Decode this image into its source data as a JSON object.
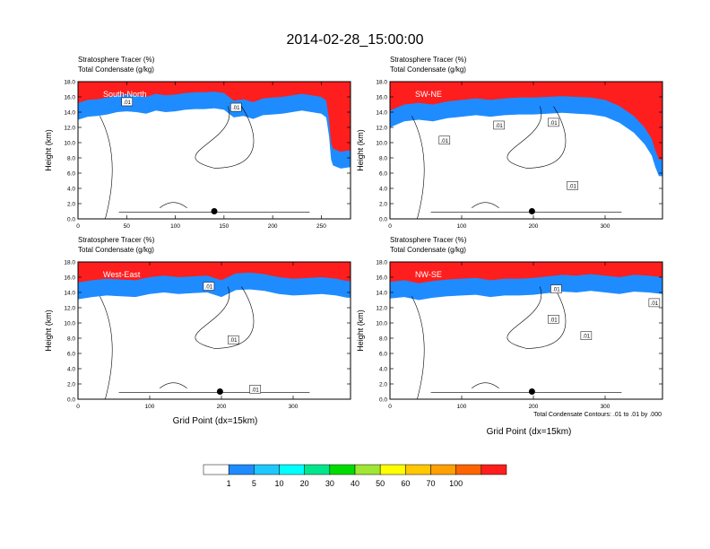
{
  "figure_title": "2014-02-28_15:00:00",
  "y_label": "Height (km)",
  "x_label": "Grid Point (dx=15km)",
  "contour_note": "Total Condensate Contours: .01 to .01 by .000",
  "colorbar": {
    "labels": [
      "1",
      "5",
      "10",
      "20",
      "30",
      "40",
      "50",
      "60",
      "70",
      "100"
    ],
    "colors": [
      "#ffffff",
      "#1e8cff",
      "#1ec8ff",
      "#00ffff",
      "#00e68c",
      "#00dc00",
      "#a0e632",
      "#ffff00",
      "#ffc800",
      "#ffa000",
      "#ff6400",
      "#ff1e1e"
    ]
  },
  "chart_data": [
    {
      "type": "contour",
      "title_line1": "Stratosphere Tracer   (%)",
      "title_line2": "Total Condensate   (g/kg)",
      "cross_section": "South-North",
      "x_ticks": [
        0,
        50,
        100,
        150,
        200,
        250
      ],
      "xlim": [
        0,
        280
      ],
      "y_ticks": [
        "0.0",
        "2.0",
        "4.0",
        "6.0",
        "8.0",
        "10.0",
        "12.0",
        "14.0",
        "16.0",
        "18.0"
      ],
      "ylim": [
        0,
        18
      ],
      "contour_labels": [
        ".01",
        ".01"
      ],
      "marker": {
        "x": 140,
        "y": 1.0
      },
      "tropopause": [
        [
          0,
          15.2
        ],
        [
          10,
          15.6
        ],
        [
          20,
          15.7
        ],
        [
          30,
          15.9
        ],
        [
          40,
          16.2
        ],
        [
          50,
          16.3
        ],
        [
          60,
          16.2
        ],
        [
          70,
          16.0
        ],
        [
          80,
          16.4
        ],
        [
          90,
          16.2
        ],
        [
          100,
          16.3
        ],
        [
          110,
          16.5
        ],
        [
          120,
          16.6
        ],
        [
          130,
          16.6
        ],
        [
          140,
          16.7
        ],
        [
          150,
          16.5
        ],
        [
          160,
          15.5
        ],
        [
          170,
          15.7
        ],
        [
          180,
          15.3
        ],
        [
          190,
          15.8
        ],
        [
          200,
          15.9
        ],
        [
          210,
          16.0
        ],
        [
          220,
          16.2
        ],
        [
          230,
          16.4
        ],
        [
          240,
          16.2
        ],
        [
          250,
          16.0
        ],
        [
          255,
          15.5
        ],
        [
          258,
          13
        ],
        [
          260,
          10
        ],
        [
          262,
          9.2
        ],
        [
          270,
          8.8
        ],
        [
          280,
          9.0
        ]
      ]
    },
    {
      "type": "contour",
      "title_line1": "Stratosphere Tracer   (%)",
      "title_line2": "Total Condensate   (g/kg)",
      "cross_section": "SW-NE",
      "x_ticks": [
        0,
        100,
        200,
        300
      ],
      "xlim": [
        0,
        380
      ],
      "y_ticks": [
        "0.0",
        "2.0",
        "4.0",
        "6.0",
        "8.0",
        "10.0",
        "12.0",
        "14.0",
        "16.0",
        "18.0"
      ],
      "ylim": [
        0,
        18
      ],
      "contour_labels": [
        ".01",
        ".01",
        ".01",
        ".01"
      ],
      "marker": {
        "x": 198,
        "y": 1.0
      },
      "tropopause": [
        [
          0,
          14.2
        ],
        [
          20,
          15.0
        ],
        [
          40,
          15.2
        ],
        [
          60,
          15.0
        ],
        [
          80,
          15.4
        ],
        [
          100,
          15.6
        ],
        [
          120,
          15.8
        ],
        [
          140,
          15.6
        ],
        [
          160,
          15.8
        ],
        [
          180,
          15.9
        ],
        [
          200,
          15.9
        ],
        [
          220,
          16.0
        ],
        [
          240,
          16.1
        ],
        [
          260,
          16.0
        ],
        [
          280,
          15.9
        ],
        [
          300,
          15.6
        ],
        [
          320,
          14.8
        ],
        [
          340,
          13.5
        ],
        [
          355,
          12.0
        ],
        [
          365,
          10.5
        ],
        [
          370,
          9.0
        ],
        [
          375,
          7.8
        ],
        [
          380,
          7.8
        ]
      ]
    },
    {
      "type": "contour",
      "title_line1": "Stratosphere Tracer   (%)",
      "title_line2": "Total Condensate   (g/kg)",
      "cross_section": "West-East",
      "x_ticks": [
        0,
        100,
        200,
        300
      ],
      "xlim": [
        0,
        380
      ],
      "y_ticks": [
        "0.0",
        "2.0",
        "4.0",
        "6.0",
        "8.0",
        "10.0",
        "12.0",
        "14.0",
        "16.0",
        "18.0"
      ],
      "ylim": [
        0,
        18
      ],
      "contour_labels": [
        ".01",
        ".01",
        ".01"
      ],
      "marker": {
        "x": 198,
        "y": 1.0
      },
      "tropopause": [
        [
          0,
          15.3
        ],
        [
          20,
          15.6
        ],
        [
          40,
          15.8
        ],
        [
          60,
          15.7
        ],
        [
          80,
          15.6
        ],
        [
          100,
          16.0
        ],
        [
          120,
          16.2
        ],
        [
          140,
          16.0
        ],
        [
          160,
          16.1
        ],
        [
          180,
          16.2
        ],
        [
          200,
          15.6
        ],
        [
          220,
          16.5
        ],
        [
          240,
          16.6
        ],
        [
          260,
          16.4
        ],
        [
          280,
          16.0
        ],
        [
          300,
          15.8
        ],
        [
          320,
          15.9
        ],
        [
          340,
          16.0
        ],
        [
          360,
          15.8
        ],
        [
          375,
          15.5
        ],
        [
          380,
          15.5
        ]
      ]
    },
    {
      "type": "contour",
      "title_line1": "Stratosphere Tracer   (%)",
      "title_line2": "Total Condensate   (g/kg)",
      "cross_section": "NW-SE",
      "x_ticks": [
        0,
        100,
        200,
        300
      ],
      "xlim": [
        0,
        380
      ],
      "y_ticks": [
        "0.0",
        "2.0",
        "4.0",
        "6.0",
        "8.0",
        "10.0",
        "12.0",
        "14.0",
        "16.0",
        "18.0"
      ],
      "ylim": [
        0,
        18
      ],
      "contour_labels": [
        ".01",
        ".01",
        ".01",
        ".01"
      ],
      "marker": {
        "x": 198,
        "y": 1.0
      },
      "tropopause": [
        [
          0,
          15.4
        ],
        [
          20,
          15.6
        ],
        [
          40,
          15.2
        ],
        [
          60,
          15.5
        ],
        [
          80,
          15.7
        ],
        [
          100,
          15.8
        ],
        [
          120,
          15.9
        ],
        [
          140,
          15.6
        ],
        [
          160,
          15.8
        ],
        [
          180,
          15.8
        ],
        [
          200,
          15.9
        ],
        [
          220,
          16.1
        ],
        [
          240,
          16.3
        ],
        [
          260,
          16.2
        ],
        [
          280,
          16.4
        ],
        [
          300,
          16.2
        ],
        [
          320,
          16.0
        ],
        [
          340,
          16.3
        ],
        [
          360,
          16.2
        ],
        [
          380,
          16.0
        ]
      ]
    }
  ]
}
